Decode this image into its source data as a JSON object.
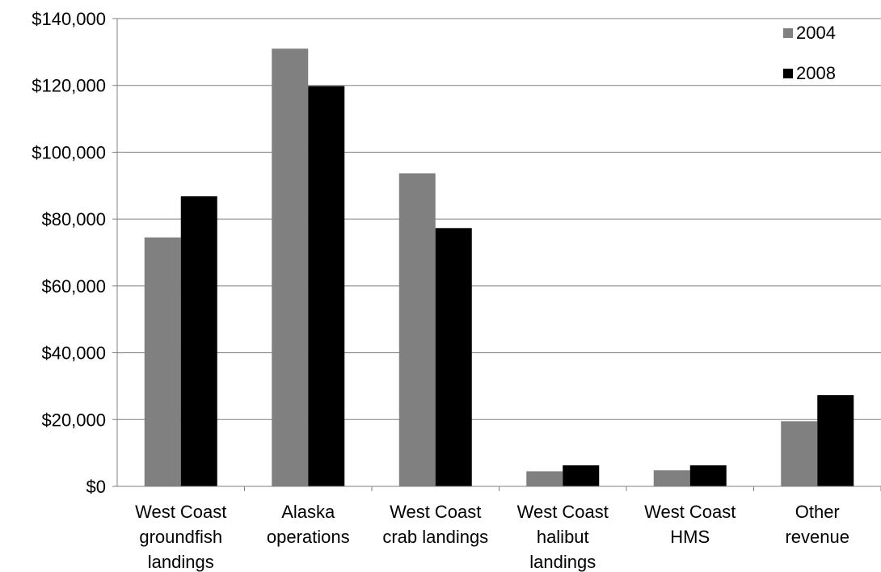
{
  "chart_data": {
    "type": "bar",
    "title": "",
    "xlabel": "",
    "ylabel": "",
    "ylim": [
      0,
      140000
    ],
    "yticks": [
      0,
      20000,
      40000,
      60000,
      80000,
      100000,
      120000,
      140000
    ],
    "ytick_labels": [
      "$0",
      "$20,000",
      "$40,000",
      "$60,000",
      "$80,000",
      "$100,000",
      "$120,000",
      "$140,000"
    ],
    "grid": "horizontal",
    "legend_position": "top-right",
    "categories": [
      [
        "West Coast",
        "groundfish",
        "landings"
      ],
      [
        "Alaska",
        "operations"
      ],
      [
        "West Coast",
        "crab landings"
      ],
      [
        "West Coast",
        "halibut",
        "landings"
      ],
      [
        "West Coast",
        "HMS"
      ],
      [
        "Other",
        "revenue"
      ]
    ],
    "series": [
      {
        "name": "2004",
        "color": "#808080",
        "values": [
          74500,
          131000,
          93700,
          4500,
          4800,
          19500
        ]
      },
      {
        "name": "2008",
        "color": "#000000",
        "values": [
          86800,
          119800,
          77300,
          6300,
          6300,
          27300
        ]
      }
    ]
  }
}
